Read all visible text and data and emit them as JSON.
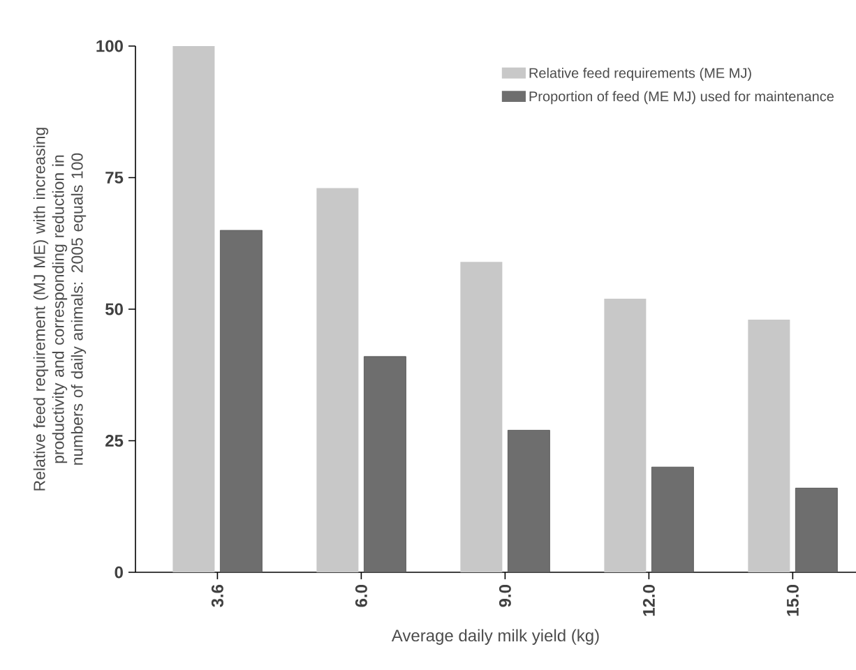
{
  "chart_data": {
    "type": "bar",
    "xlabel": "Average daily milk yield (kg)",
    "ylabel": "Relative feed requirement (MJ ME) with increasing productivity and corresponding reduction in numbers of daily animals: 2005 equals 100",
    "categories": [
      "3.6",
      "6.0",
      "9.0",
      "12.0",
      "15.0"
    ],
    "series": [
      {
        "name": "Relative feed requirements (ME MJ)",
        "color": "#c8c8c8",
        "values": [
          100,
          73,
          59,
          52,
          48
        ]
      },
      {
        "name": "Proportion of feed (ME MJ) used for maintenance",
        "color": "#6e6e6e",
        "values": [
          65,
          41,
          27,
          20,
          16
        ]
      }
    ],
    "ylim": [
      0,
      100
    ],
    "yticks": [
      0,
      25,
      50,
      75,
      100
    ],
    "legend": "top right",
    "grid": false
  }
}
